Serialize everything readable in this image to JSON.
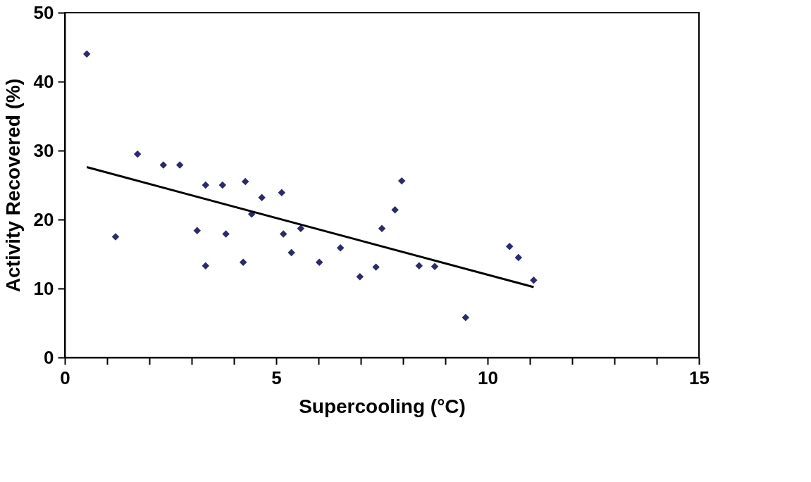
{
  "chart_data": {
    "type": "scatter",
    "xlabel": "Supercooling (°C)",
    "ylabel": "Activity Recovered (%)",
    "xlim": [
      0,
      15
    ],
    "ylim": [
      0,
      50
    ],
    "xticks": [
      0,
      {
        "value": 1,
        "label": null
      },
      {
        "value": 2,
        "label": null
      },
      {
        "value": 3,
        "label": null
      },
      {
        "value": 4,
        "label": null
      },
      5,
      {
        "value": 6,
        "label": null
      },
      {
        "value": 7,
        "label": null
      },
      {
        "value": 8,
        "label": null
      },
      {
        "value": 9,
        "label": null
      },
      10,
      {
        "value": 11,
        "label": null
      },
      {
        "value": 12,
        "label": null
      },
      {
        "value": 13,
        "label": null
      },
      {
        "value": 14,
        "label": null
      },
      15
    ],
    "yticks": [
      0,
      10,
      20,
      30,
      40,
      50
    ],
    "grid": false,
    "marker": "diamond",
    "series": [
      {
        "color": "#2b2b6b",
        "x": [
          0.52,
          1.2,
          1.72,
          2.33,
          2.72,
          3.13,
          3.33,
          3.33,
          3.73,
          3.81,
          4.22,
          4.27,
          4.42,
          4.66,
          5.13,
          5.17,
          5.36,
          5.58,
          6.02,
          6.52,
          6.98,
          7.36,
          7.5,
          7.81,
          7.97,
          8.38,
          8.75,
          9.48,
          10.52,
          10.73,
          11.09
        ],
        "values": [
          44.0,
          17.5,
          29.5,
          27.9,
          27.9,
          18.4,
          25.0,
          13.3,
          25.0,
          17.9,
          13.8,
          25.5,
          20.8,
          23.2,
          23.9,
          17.9,
          15.2,
          18.7,
          13.8,
          15.9,
          11.7,
          13.1,
          18.7,
          21.4,
          25.6,
          13.3,
          13.2,
          5.8,
          16.1,
          14.5,
          11.2
        ]
      },
      {
        "type": "line",
        "marker": "none",
        "color": "#000000",
        "x": [
          0.52,
          11.09
        ],
        "values": [
          27.6,
          10.2
        ]
      }
    ]
  }
}
